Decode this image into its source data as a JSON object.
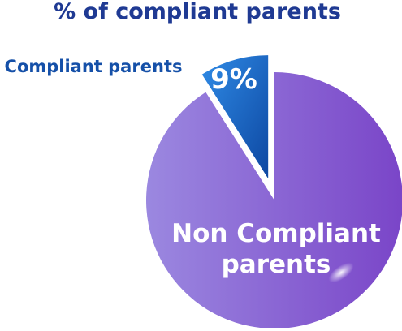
{
  "chart_data": {
    "type": "pie",
    "title": "% of compliant parents",
    "slices": [
      {
        "label": "Compliant parents",
        "value": 9,
        "value_label": "9%",
        "color": "#1565c0",
        "exploded": true
      },
      {
        "label": "Non Compliant parents",
        "label_lines": [
          "Non Compliant",
          "parents"
        ],
        "value": 91,
        "color": "#8a6fd6"
      }
    ],
    "title_color": "#1f3a93",
    "legend": "none"
  }
}
